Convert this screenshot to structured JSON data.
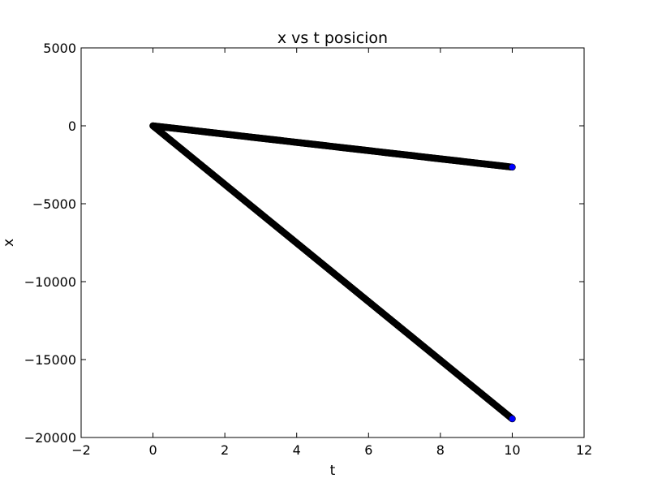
{
  "chart_data": {
    "type": "scatter",
    "title": "x vs t posicion",
    "xlabel": "t",
    "ylabel": "x",
    "xlim": [
      -2,
      12
    ],
    "ylim": [
      -20000,
      5000
    ],
    "xticks": [
      -2,
      0,
      2,
      4,
      6,
      8,
      10,
      12
    ],
    "yticks": [
      -20000,
      -15000,
      -10000,
      -5000,
      0,
      5000
    ],
    "grid": false,
    "legend": "none",
    "marker_fill": "#000000",
    "last_marker_fill": "#0000ff",
    "series": [
      {
        "t_start": 0,
        "t_end": 10,
        "x_start": 0,
        "x_end": -2650,
        "point_count": 400
      },
      {
        "t_start": 0,
        "t_end": 10,
        "x_start": 0,
        "x_end": -18800,
        "point_count": 400
      }
    ]
  }
}
